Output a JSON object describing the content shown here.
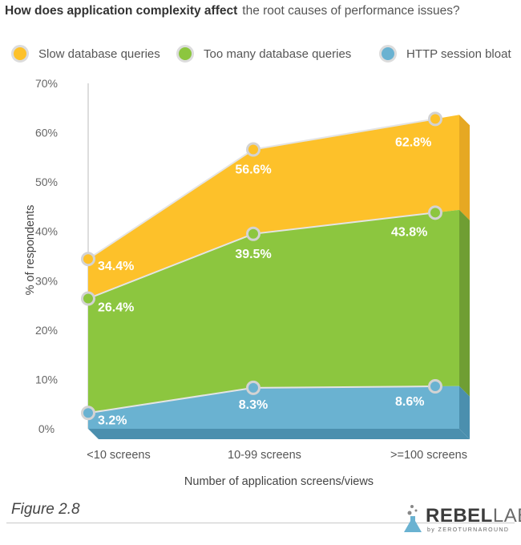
{
  "title": {
    "bold": "How does application complexity affect",
    "rest": "the root causes of performance issues?"
  },
  "figure_label": "Figure 2.8",
  "logo": {
    "main_bold": "REBEL",
    "main_light": "LABS",
    "sub": "by ZEROTURNAROUND"
  },
  "colors": {
    "slow": "#fdc12a",
    "slow_side": "#e6a823",
    "too_many": "#8cc63f",
    "too_many_side": "#6f9e33",
    "http": "#6ab2d1",
    "http_side": "#4b8fae",
    "point_border": "#d3d3d3"
  },
  "chart_data": {
    "type": "area",
    "title": "How does application complexity affect the root causes of performance issues?",
    "xlabel": "Number of application screens/views",
    "ylabel": "% of respondents",
    "categories": [
      "<10 screens",
      "10-99 screens",
      ">=100 screens"
    ],
    "ylim": [
      0,
      70
    ],
    "yticks": [
      "0%",
      "10%",
      "20%",
      "30%",
      "40%",
      "50%",
      "60%",
      "70%"
    ],
    "grid": false,
    "legend_position": "top",
    "series": [
      {
        "name": "Slow database queries",
        "values": [
          34.4,
          56.6,
          62.8
        ],
        "labels": [
          "34.4%",
          "56.6%",
          "62.8%"
        ]
      },
      {
        "name": "Too many database queries",
        "values": [
          26.4,
          39.5,
          43.8
        ],
        "labels": [
          "26.4%",
          "39.5%",
          "43.8%"
        ]
      },
      {
        "name": "HTTP session bloat",
        "values": [
          3.2,
          8.3,
          8.6
        ],
        "labels": [
          "3.2%",
          "8.3%",
          "8.6%"
        ]
      }
    ]
  }
}
